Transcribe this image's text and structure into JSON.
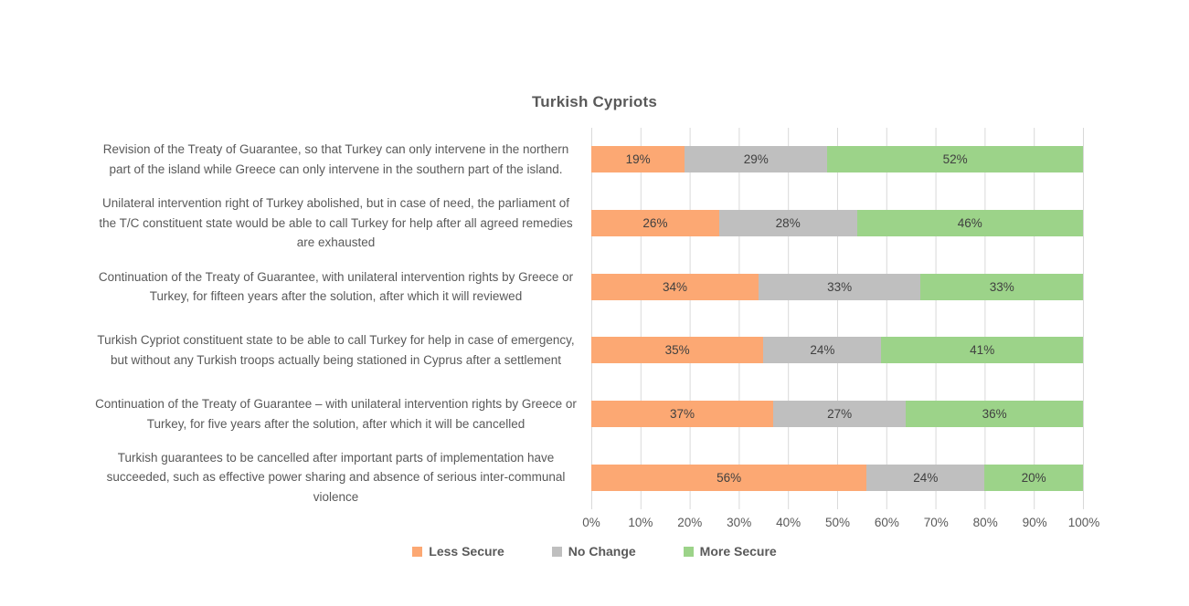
{
  "chart_data": {
    "type": "bar",
    "orientation": "horizontal-stacked",
    "title": "Turkish Cypriots",
    "categories": [
      "Revision of the Treaty of Guarantee, so that Turkey can only intervene in the northern part of the island while Greece can only intervene in the southern part of the island.",
      "Unilateral intervention right of Turkey abolished, but in case of need, the parliament of the T/C constituent state would be able to call Turkey for help after all agreed remedies are exhausted",
      "Continuation of the Treaty of Guarantee, with unilateral intervention rights by Greece or Turkey, for fifteen years after the solution, after which it will reviewed",
      "Turkish Cypriot constituent state to be able to call Turkey for help in case of emergency, but without any Turkish troops actually being stationed in Cyprus after a settlement",
      "Continuation of the Treaty of Guarantee – with unilateral intervention rights by Greece or Turkey, for five years after the solution, after which it will be cancelled",
      "Turkish guarantees to be cancelled after important parts of implementation have succeeded, such as effective power sharing and absence of serious inter-communal violence"
    ],
    "series": [
      {
        "name": "Less Secure",
        "color": "#FCA873",
        "values": [
          19,
          26,
          34,
          35,
          37,
          56
        ]
      },
      {
        "name": "No Change",
        "color": "#BFBFBF",
        "values": [
          29,
          28,
          33,
          24,
          27,
          24
        ]
      },
      {
        "name": "More Secure",
        "color": "#9CD389",
        "values": [
          52,
          46,
          33,
          41,
          36,
          20
        ]
      }
    ],
    "value_suffix": "%",
    "x_ticks": [
      "0%",
      "10%",
      "20%",
      "30%",
      "40%",
      "50%",
      "60%",
      "70%",
      "80%",
      "90%",
      "100%"
    ],
    "xlim": [
      0,
      100
    ],
    "grid": true,
    "legend_position": "bottom"
  },
  "colors": {
    "background": "#FFFFFF",
    "gridline": "#D9D9D9",
    "category_text": "#595959",
    "data_label_text": "#404040",
    "axis_text": "#595959"
  }
}
